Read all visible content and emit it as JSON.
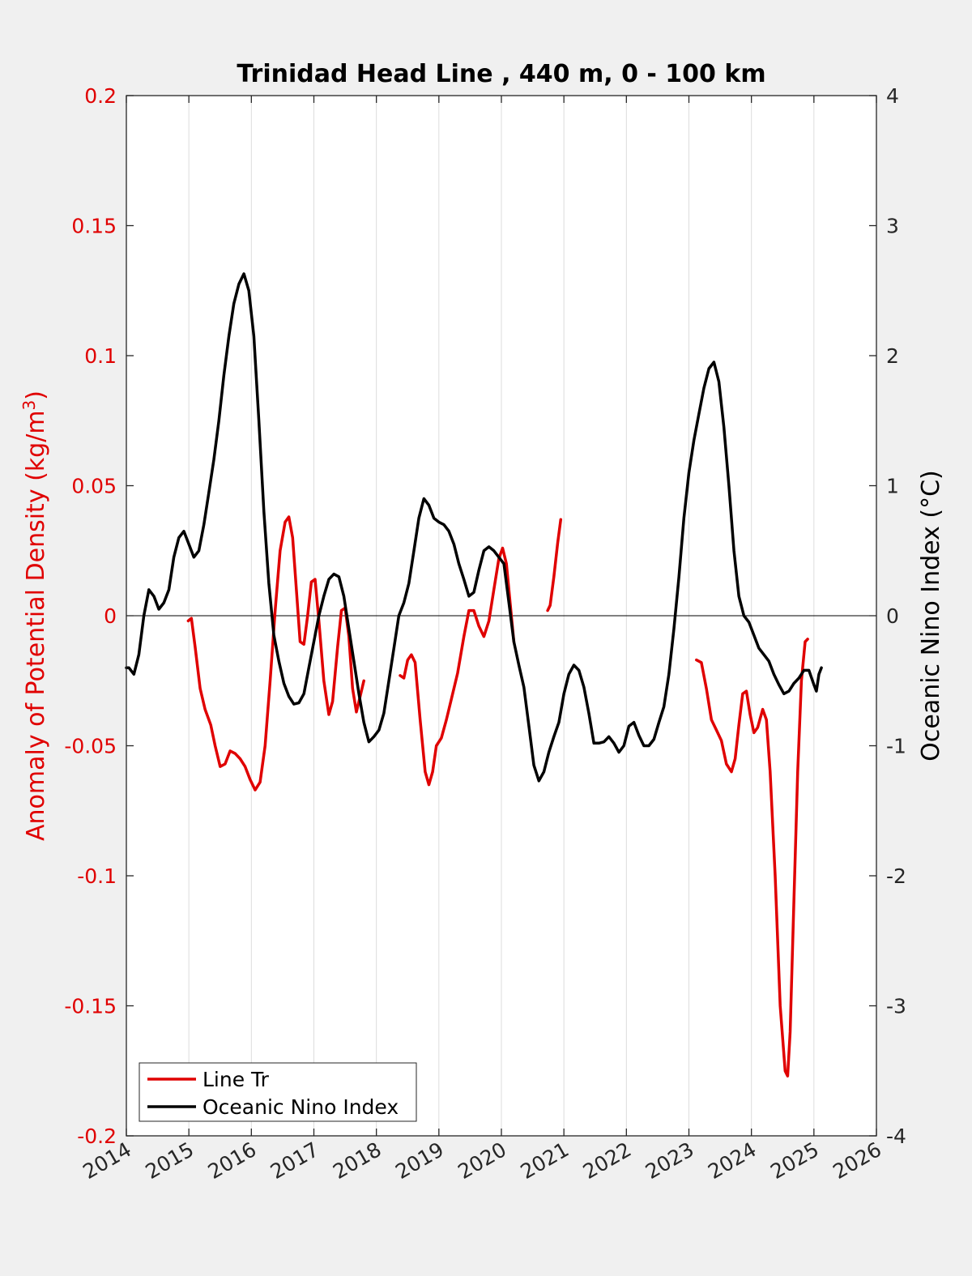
{
  "chart_data": {
    "type": "line",
    "title": "Trinidad Head Line , 440 m, 0 - 100 km",
    "xlabel": "",
    "ylabel_left": "Anomaly of Potential Density (kg/m",
    "ylabel_left_sup": "3",
    "ylabel_left_close": ")",
    "ylabel_right": "Oceanic Nino Index (°C)",
    "xlim": [
      2014,
      2026
    ],
    "ylim_left": [
      -0.2,
      0.2
    ],
    "ylim_right": [
      -4,
      4
    ],
    "x_ticks": [
      "2014",
      "2015",
      "2016",
      "2017",
      "2018",
      "2019",
      "2020",
      "2021",
      "2022",
      "2023",
      "2024",
      "2025",
      "2026"
    ],
    "y_left_ticks": [
      "-0.2",
      "-0.15",
      "-0.1",
      "-0.05",
      "0",
      "0.05",
      "0.1",
      "0.15",
      "0.2"
    ],
    "y_right_ticks": [
      "-4",
      "-3",
      "-2",
      "-1",
      "0",
      "1",
      "2",
      "3",
      "4"
    ],
    "grid": "vertical",
    "legend_position": "bottom-left",
    "colors": {
      "left_axis": "#e00000",
      "line_tr": "#e00000",
      "oni": "#000000",
      "zero_line": "#000000"
    },
    "series": [
      {
        "name": "Line Tr",
        "axis": "left",
        "color": "#e00000",
        "segments": [
          [
            [
              2014.99,
              -0.002
            ],
            [
              2015.04,
              -0.001
            ],
            [
              2015.1,
              -0.012
            ],
            [
              2015.18,
              -0.028
            ],
            [
              2015.26,
              -0.036
            ],
            [
              2015.35,
              -0.042
            ],
            [
              2015.42,
              -0.05
            ],
            [
              2015.5,
              -0.058
            ],
            [
              2015.58,
              -0.057
            ],
            [
              2015.66,
              -0.052
            ],
            [
              2015.74,
              -0.053
            ],
            [
              2015.82,
              -0.055
            ],
            [
              2015.9,
              -0.058
            ],
            [
              2015.98,
              -0.063
            ],
            [
              2016.06,
              -0.067
            ],
            [
              2016.14,
              -0.064
            ],
            [
              2016.22,
              -0.05
            ],
            [
              2016.3,
              -0.025
            ],
            [
              2016.38,
              0.002
            ],
            [
              2016.46,
              0.025
            ],
            [
              2016.54,
              0.036
            ],
            [
              2016.6,
              0.038
            ],
            [
              2016.66,
              0.03
            ],
            [
              2016.72,
              0.01
            ],
            [
              2016.78,
              -0.01
            ],
            [
              2016.84,
              -0.011
            ],
            [
              2016.9,
              0.0
            ],
            [
              2016.96,
              0.013
            ],
            [
              2017.02,
              0.014
            ],
            [
              2017.08,
              -0.002
            ],
            [
              2017.16,
              -0.025
            ],
            [
              2017.24,
              -0.038
            ],
            [
              2017.3,
              -0.033
            ],
            [
              2017.38,
              -0.012
            ],
            [
              2017.44,
              0.002
            ],
            [
              2017.5,
              0.003
            ],
            [
              2017.56,
              -0.008
            ],
            [
              2017.62,
              -0.028
            ],
            [
              2017.68,
              -0.037
            ],
            [
              2017.75,
              -0.03
            ],
            [
              2017.8,
              -0.025
            ]
          ],
          [
            [
              2018.38,
              -0.023
            ],
            [
              2018.44,
              -0.024
            ],
            [
              2018.5,
              -0.017
            ],
            [
              2018.56,
              -0.015
            ],
            [
              2018.62,
              -0.018
            ],
            [
              2018.7,
              -0.04
            ],
            [
              2018.78,
              -0.06
            ],
            [
              2018.84,
              -0.065
            ],
            [
              2018.9,
              -0.06
            ],
            [
              2018.96,
              -0.05
            ],
            [
              2019.04,
              -0.047
            ],
            [
              2019.12,
              -0.04
            ],
            [
              2019.2,
              -0.032
            ],
            [
              2019.3,
              -0.022
            ],
            [
              2019.4,
              -0.008
            ],
            [
              2019.48,
              0.002
            ],
            [
              2019.56,
              0.002
            ],
            [
              2019.64,
              -0.004
            ],
            [
              2019.72,
              -0.008
            ],
            [
              2019.8,
              -0.002
            ],
            [
              2019.88,
              0.01
            ],
            [
              2019.96,
              0.022
            ],
            [
              2020.02,
              0.026
            ],
            [
              2020.08,
              0.02
            ],
            [
              2020.14,
              0.005
            ],
            [
              2020.2,
              -0.01
            ]
          ],
          [
            [
              2020.74,
              0.002
            ],
            [
              2020.78,
              0.004
            ],
            [
              2020.84,
              0.015
            ],
            [
              2020.9,
              0.028
            ],
            [
              2020.95,
              0.037
            ]
          ],
          [
            [
              2023.12,
              -0.017
            ],
            [
              2023.2,
              -0.018
            ],
            [
              2023.28,
              -0.028
            ],
            [
              2023.36,
              -0.04
            ],
            [
              2023.44,
              -0.044
            ],
            [
              2023.52,
              -0.048
            ],
            [
              2023.6,
              -0.057
            ],
            [
              2023.68,
              -0.06
            ],
            [
              2023.74,
              -0.055
            ],
            [
              2023.8,
              -0.042
            ],
            [
              2023.86,
              -0.03
            ],
            [
              2023.92,
              -0.029
            ],
            [
              2023.98,
              -0.038
            ],
            [
              2024.04,
              -0.045
            ],
            [
              2024.1,
              -0.043
            ],
            [
              2024.18,
              -0.036
            ],
            [
              2024.24,
              -0.04
            ],
            [
              2024.3,
              -0.06
            ],
            [
              2024.38,
              -0.1
            ],
            [
              2024.46,
              -0.15
            ],
            [
              2024.54,
              -0.175
            ],
            [
              2024.58,
              -0.177
            ],
            [
              2024.62,
              -0.16
            ],
            [
              2024.68,
              -0.11
            ],
            [
              2024.74,
              -0.06
            ],
            [
              2024.8,
              -0.025
            ],
            [
              2024.86,
              -0.01
            ],
            [
              2024.9,
              -0.009
            ]
          ]
        ]
      },
      {
        "name": "Oceanic Nino Index",
        "axis": "right",
        "color": "#000000",
        "points": [
          [
            2014.0,
            -0.4
          ],
          [
            2014.04,
            -0.4
          ],
          [
            2014.12,
            -0.45
          ],
          [
            2014.2,
            -0.3
          ],
          [
            2014.28,
            0.0
          ],
          [
            2014.36,
            0.2
          ],
          [
            2014.44,
            0.15
          ],
          [
            2014.52,
            0.05
          ],
          [
            2014.6,
            0.1
          ],
          [
            2014.68,
            0.2
          ],
          [
            2014.76,
            0.45
          ],
          [
            2014.84,
            0.6
          ],
          [
            2014.92,
            0.65
          ],
          [
            2015.0,
            0.55
          ],
          [
            2015.08,
            0.45
          ],
          [
            2015.16,
            0.5
          ],
          [
            2015.24,
            0.7
          ],
          [
            2015.32,
            0.95
          ],
          [
            2015.4,
            1.2
          ],
          [
            2015.48,
            1.5
          ],
          [
            2015.56,
            1.85
          ],
          [
            2015.64,
            2.15
          ],
          [
            2015.72,
            2.4
          ],
          [
            2015.8,
            2.55
          ],
          [
            2015.88,
            2.63
          ],
          [
            2015.96,
            2.5
          ],
          [
            2016.04,
            2.15
          ],
          [
            2016.12,
            1.5
          ],
          [
            2016.2,
            0.8
          ],
          [
            2016.28,
            0.25
          ],
          [
            2016.36,
            -0.15
          ],
          [
            2016.44,
            -0.35
          ],
          [
            2016.52,
            -0.52
          ],
          [
            2016.6,
            -0.62
          ],
          [
            2016.68,
            -0.68
          ],
          [
            2016.76,
            -0.67
          ],
          [
            2016.84,
            -0.6
          ],
          [
            2016.92,
            -0.4
          ],
          [
            2017.0,
            -0.2
          ],
          [
            2017.08,
            0.0
          ],
          [
            2017.16,
            0.15
          ],
          [
            2017.24,
            0.28
          ],
          [
            2017.32,
            0.32
          ],
          [
            2017.4,
            0.3
          ],
          [
            2017.48,
            0.15
          ],
          [
            2017.56,
            -0.1
          ],
          [
            2017.64,
            -0.35
          ],
          [
            2017.72,
            -0.6
          ],
          [
            2017.8,
            -0.82
          ],
          [
            2017.88,
            -0.97
          ],
          [
            2017.96,
            -0.93
          ],
          [
            2018.04,
            -0.88
          ],
          [
            2018.12,
            -0.75
          ],
          [
            2018.2,
            -0.5
          ],
          [
            2018.28,
            -0.25
          ],
          [
            2018.36,
            0.0
          ],
          [
            2018.44,
            0.1
          ],
          [
            2018.52,
            0.25
          ],
          [
            2018.6,
            0.5
          ],
          [
            2018.68,
            0.75
          ],
          [
            2018.76,
            0.9
          ],
          [
            2018.84,
            0.85
          ],
          [
            2018.92,
            0.75
          ],
          [
            2019.0,
            0.72
          ],
          [
            2019.08,
            0.7
          ],
          [
            2019.16,
            0.65
          ],
          [
            2019.24,
            0.55
          ],
          [
            2019.32,
            0.4
          ],
          [
            2019.4,
            0.28
          ],
          [
            2019.48,
            0.15
          ],
          [
            2019.56,
            0.18
          ],
          [
            2019.64,
            0.35
          ],
          [
            2019.72,
            0.5
          ],
          [
            2019.8,
            0.53
          ],
          [
            2019.88,
            0.5
          ],
          [
            2019.96,
            0.45
          ],
          [
            2020.04,
            0.4
          ],
          [
            2020.12,
            0.1
          ],
          [
            2020.2,
            -0.2
          ],
          [
            2020.28,
            -0.38
          ],
          [
            2020.36,
            -0.55
          ],
          [
            2020.44,
            -0.85
          ],
          [
            2020.52,
            -1.15
          ],
          [
            2020.6,
            -1.27
          ],
          [
            2020.68,
            -1.2
          ],
          [
            2020.76,
            -1.05
          ],
          [
            2020.84,
            -0.93
          ],
          [
            2020.92,
            -0.82
          ],
          [
            2021.0,
            -0.6
          ],
          [
            2021.08,
            -0.45
          ],
          [
            2021.16,
            -0.38
          ],
          [
            2021.24,
            -0.42
          ],
          [
            2021.32,
            -0.55
          ],
          [
            2021.4,
            -0.75
          ],
          [
            2021.48,
            -0.98
          ],
          [
            2021.56,
            -0.98
          ],
          [
            2021.64,
            -0.97
          ],
          [
            2021.72,
            -0.93
          ],
          [
            2021.8,
            -0.98
          ],
          [
            2021.88,
            -1.05
          ],
          [
            2021.96,
            -1.0
          ],
          [
            2022.04,
            -0.85
          ],
          [
            2022.12,
            -0.82
          ],
          [
            2022.2,
            -0.92
          ],
          [
            2022.28,
            -1.0
          ],
          [
            2022.36,
            -1.0
          ],
          [
            2022.44,
            -0.95
          ],
          [
            2022.52,
            -0.82
          ],
          [
            2022.6,
            -0.7
          ],
          [
            2022.68,
            -0.45
          ],
          [
            2022.76,
            -0.1
          ],
          [
            2022.84,
            0.3
          ],
          [
            2022.92,
            0.75
          ],
          [
            2023.0,
            1.1
          ],
          [
            2023.08,
            1.35
          ],
          [
            2023.16,
            1.55
          ],
          [
            2023.24,
            1.75
          ],
          [
            2023.32,
            1.9
          ],
          [
            2023.4,
            1.95
          ],
          [
            2023.48,
            1.8
          ],
          [
            2023.56,
            1.45
          ],
          [
            2023.64,
            1.0
          ],
          [
            2023.72,
            0.5
          ],
          [
            2023.8,
            0.15
          ],
          [
            2023.88,
            0.0
          ],
          [
            2023.96,
            -0.05
          ],
          [
            2024.04,
            -0.15
          ],
          [
            2024.12,
            -0.25
          ],
          [
            2024.2,
            -0.3
          ],
          [
            2024.28,
            -0.35
          ],
          [
            2024.36,
            -0.45
          ],
          [
            2024.44,
            -0.53
          ],
          [
            2024.52,
            -0.6
          ],
          [
            2024.6,
            -0.58
          ],
          [
            2024.68,
            -0.52
          ],
          [
            2024.76,
            -0.48
          ],
          [
            2024.84,
            -0.42
          ],
          [
            2024.92,
            -0.42
          ],
          [
            2025.0,
            -0.53
          ],
          [
            2025.04,
            -0.58
          ],
          [
            2025.08,
            -0.45
          ],
          [
            2025.12,
            -0.4
          ]
        ]
      }
    ]
  }
}
